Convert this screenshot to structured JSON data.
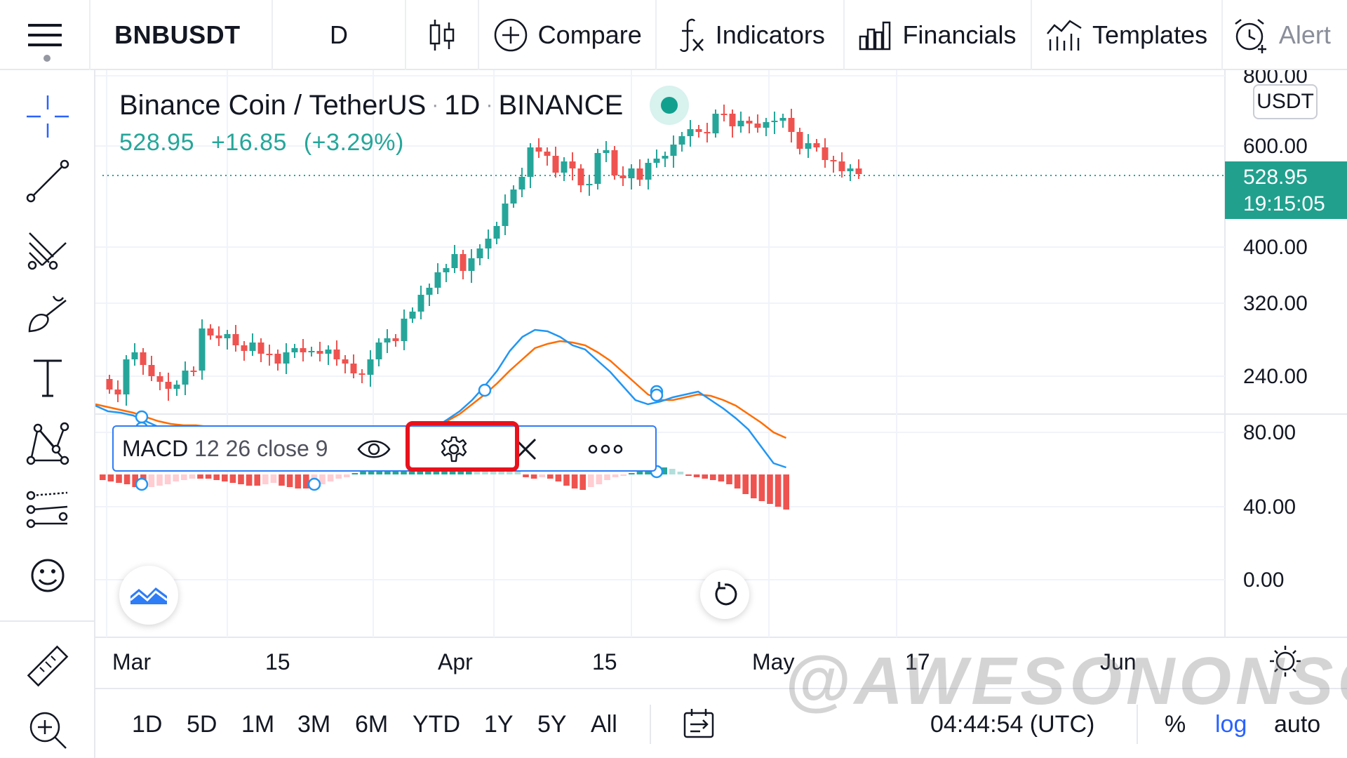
{
  "toolbar": {
    "symbol": "BNBUSDT",
    "interval": "D",
    "compare_label": "Compare",
    "indicators_label": "Indicators",
    "financials_label": "Financials",
    "templates_label": "Templates",
    "alert_label": "Alert"
  },
  "left_tools": [
    {
      "name": "crosshair-icon"
    },
    {
      "name": "trend-line-icon"
    },
    {
      "name": "pitchfork-icon"
    },
    {
      "name": "brush-icon"
    },
    {
      "name": "text-icon"
    },
    {
      "name": "pattern-icon"
    },
    {
      "name": "prediction-icon"
    },
    {
      "name": "emoji-icon"
    },
    {
      "name": "ruler-icon"
    },
    {
      "name": "zoom-in-icon"
    }
  ],
  "legend": {
    "pair": "Binance Coin / TetherUS",
    "interval": "1D",
    "exchange": "BINANCE",
    "last": "528.95",
    "change": "+16.85",
    "change_pct": "(+3.29%)"
  },
  "price_axis": {
    "currency": "USDT",
    "ticks": [
      "800.00",
      "600.00",
      "400.00",
      "320.00",
      "240.00"
    ],
    "last_price": "528.95",
    "countdown": "19:15:05"
  },
  "macd": {
    "name": "MACD",
    "params": "12 26 close 9",
    "axis_ticks": [
      "80.00",
      "40.00",
      "0.00"
    ]
  },
  "time_axis": {
    "labels": [
      "Mar",
      "15",
      "Apr",
      "15",
      "May",
      "17",
      "Jun"
    ]
  },
  "bottom": {
    "ranges": [
      "1D",
      "5D",
      "1M",
      "3M",
      "6M",
      "YTD",
      "1Y",
      "5Y",
      "All"
    ],
    "time": "04:44:54 (UTC)",
    "percent": "%",
    "log": "log",
    "auto": "auto"
  },
  "watermark": "@AWESONONSO",
  "colors": {
    "up": "#26a69a",
    "down": "#ef5350",
    "macd_line": "#2196f3",
    "signal_line": "#ff6d00",
    "highlight": "#e8121c",
    "accent": "#2962ff"
  }
}
